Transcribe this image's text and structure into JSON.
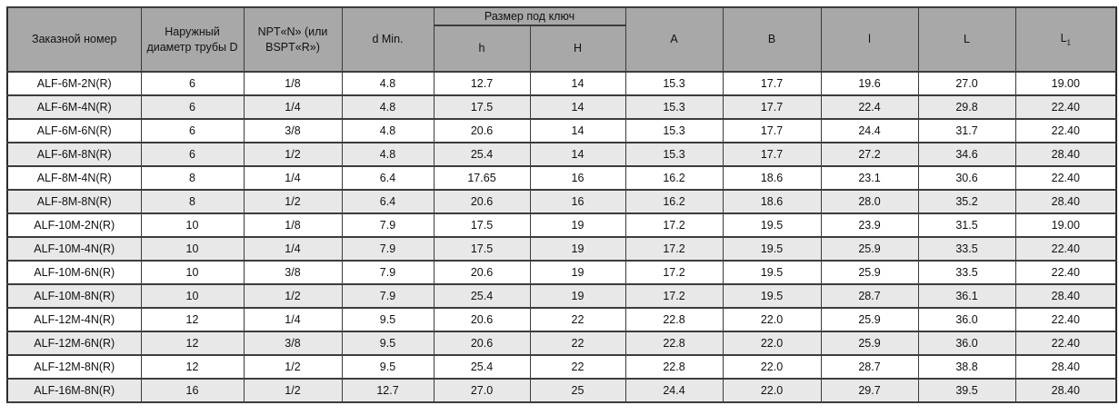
{
  "table": {
    "headers": {
      "order_number": "Заказной номер",
      "outer_diameter": "Наружный диаметр трубы D",
      "npt": "NPT«N» (или BSPT«R»)",
      "d_min": "d Min.",
      "wrench_size_group": "Размер под ключ",
      "h_small": "h",
      "h_big": "H",
      "a": "A",
      "b": "B",
      "l_small": "l",
      "l_big": "L",
      "l1_base": "L",
      "l1_sub": "1"
    },
    "rows": [
      [
        "ALF-6M-2N(R)",
        "6",
        "1/8",
        "4.8",
        "12.7",
        "14",
        "15.3",
        "17.7",
        "19.6",
        "27.0",
        "19.00"
      ],
      [
        "ALF-6M-4N(R)",
        "6",
        "1/4",
        "4.8",
        "17.5",
        "14",
        "15.3",
        "17.7",
        "22.4",
        "29.8",
        "22.40"
      ],
      [
        "ALF-6M-6N(R)",
        "6",
        "3/8",
        "4.8",
        "20.6",
        "14",
        "15.3",
        "17.7",
        "24.4",
        "31.7",
        "22.40"
      ],
      [
        "ALF-6M-8N(R)",
        "6",
        "1/2",
        "4.8",
        "25.4",
        "14",
        "15.3",
        "17.7",
        "27.2",
        "34.6",
        "28.40"
      ],
      [
        "ALF-8M-4N(R)",
        "8",
        "1/4",
        "6.4",
        "17.65",
        "16",
        "16.2",
        "18.6",
        "23.1",
        "30.6",
        "22.40"
      ],
      [
        "ALF-8M-8N(R)",
        "8",
        "1/2",
        "6.4",
        "20.6",
        "16",
        "16.2",
        "18.6",
        "28.0",
        "35.2",
        "28.40"
      ],
      [
        "ALF-10M-2N(R)",
        "10",
        "1/8",
        "7.9",
        "17.5",
        "19",
        "17.2",
        "19.5",
        "23.9",
        "31.5",
        "19.00"
      ],
      [
        "ALF-10M-4N(R)",
        "10",
        "1/4",
        "7.9",
        "17.5",
        "19",
        "17.2",
        "19.5",
        "25.9",
        "33.5",
        "22.40"
      ],
      [
        "ALF-10M-6N(R)",
        "10",
        "3/8",
        "7.9",
        "20.6",
        "19",
        "17.2",
        "19.5",
        "25.9",
        "33.5",
        "22.40"
      ],
      [
        "ALF-10M-8N(R)",
        "10",
        "1/2",
        "7.9",
        "25.4",
        "19",
        "17.2",
        "19.5",
        "28.7",
        "36.1",
        "28.40"
      ],
      [
        "ALF-12M-4N(R)",
        "12",
        "1/4",
        "9.5",
        "20.6",
        "22",
        "22.8",
        "22.0",
        "25.9",
        "36.0",
        "22.40"
      ],
      [
        "ALF-12M-6N(R)",
        "12",
        "3/8",
        "9.5",
        "20.6",
        "22",
        "22.8",
        "22.0",
        "25.9",
        "36.0",
        "22.40"
      ],
      [
        "ALF-12M-8N(R)",
        "12",
        "1/2",
        "9.5",
        "25.4",
        "22",
        "22.8",
        "22.0",
        "28.7",
        "38.8",
        "28.40"
      ],
      [
        "ALF-16M-8N(R)",
        "16",
        "1/2",
        "12.7",
        "27.0",
        "25",
        "24.4",
        "22.0",
        "29.7",
        "39.5",
        "28.40"
      ]
    ]
  },
  "colors": {
    "header_bg": "#a8a8a8",
    "row_alt_bg": "#e8e8e8",
    "border": "#3c3c3c"
  }
}
